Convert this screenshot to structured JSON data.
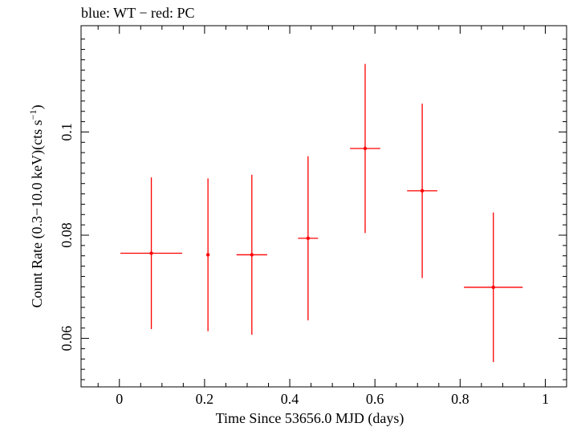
{
  "chart_data": {
    "type": "scatter",
    "title": "blue: WT − red: PC",
    "xlabel": "Time Since 53656.0 MJD (days)",
    "ylabel_main": "Count Rate (0.3−10.0 keV)(cts s",
    "ylabel_sup": "−1",
    "ylabel_close": ")",
    "xlim": [
      -0.09,
      1.05
    ],
    "ylim": [
      0.0506,
      0.1206
    ],
    "xticks": [
      0,
      0.2,
      0.4,
      0.6,
      0.8,
      1
    ],
    "xtick_labels": [
      "0",
      "0.2",
      "0.4",
      "0.6",
      "0.8",
      "1"
    ],
    "yticks": [
      0.06,
      0.08,
      0.1
    ],
    "ytick_labels": [
      "0.06",
      "0.08",
      "0.1"
    ],
    "grid": false,
    "series": [
      {
        "color": "#ff0000",
        "points": [
          {
            "x": 0.075,
            "y": 0.0765,
            "xerr_lo": 0.0725,
            "xerr_hi": 0.0725,
            "yerr": 0.0147
          },
          {
            "x": 0.208,
            "y": 0.0762,
            "xerr_lo": 0.0,
            "xerr_hi": 0.0,
            "yerr": 0.0148
          },
          {
            "x": 0.311,
            "y": 0.0762,
            "xerr_lo": 0.036,
            "xerr_hi": 0.036,
            "yerr": 0.0155
          },
          {
            "x": 0.443,
            "y": 0.0794,
            "xerr_lo": 0.0235,
            "xerr_hi": 0.0235,
            "yerr": 0.0159
          },
          {
            "x": 0.577,
            "y": 0.0968,
            "xerr_lo": 0.0355,
            "xerr_hi": 0.0355,
            "yerr": 0.0164
          },
          {
            "x": 0.711,
            "y": 0.0886,
            "xerr_lo": 0.0355,
            "xerr_hi": 0.0355,
            "yerr": 0.0169
          },
          {
            "x": 0.878,
            "y": 0.0699,
            "xerr_lo": 0.069,
            "xerr_hi": 0.069,
            "yerr": 0.0145
          }
        ]
      }
    ]
  }
}
